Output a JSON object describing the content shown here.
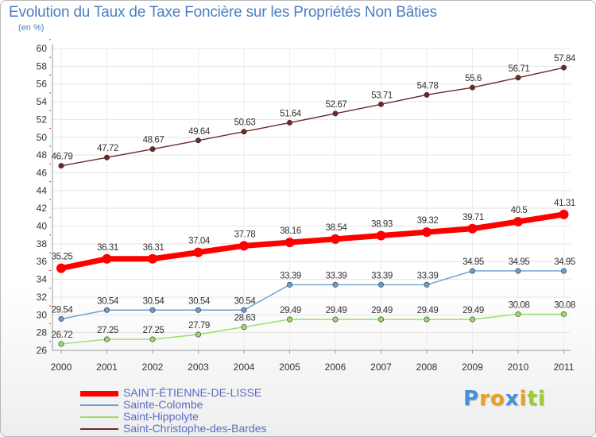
{
  "chart_data": {
    "type": "line",
    "title": "Evolution du Taux de Taxe Foncière sur les Propriétés Non Bâties",
    "subtitle": "(en %)",
    "xlabel": "",
    "ylabel": "",
    "ylim": [
      26,
      60
    ],
    "yticks": [
      26,
      28,
      30,
      32,
      34,
      36,
      38,
      40,
      42,
      44,
      46,
      48,
      50,
      52,
      54,
      56,
      58,
      60
    ],
    "x": [
      "2000",
      "2001",
      "2002",
      "2003",
      "2004",
      "2005",
      "2006",
      "2007",
      "2008",
      "2009",
      "2010",
      "2011"
    ],
    "series": [
      {
        "name": "Saint-Christophe-des-Bardes",
        "color": "#6b2a2a",
        "values": [
          46.79,
          47.72,
          48.67,
          49.64,
          50.63,
          51.64,
          52.67,
          53.71,
          54.78,
          55.6,
          56.71,
          57.84
        ],
        "labels": [
          "46.79",
          "47.72",
          "48.67",
          "49.64",
          "50.63",
          "51.64",
          "52.67",
          "53.71",
          "54.78",
          "55.6",
          "56.71",
          "57.84"
        ]
      },
      {
        "name": "SAINT-ÉTIENNE-DE-LISSE",
        "color": "#ff0000",
        "highlight": true,
        "values": [
          35.25,
          36.31,
          36.31,
          37.04,
          37.78,
          38.16,
          38.54,
          38.93,
          39.32,
          39.71,
          40.5,
          41.31
        ],
        "labels": [
          "35.25",
          "36.31",
          "36.31",
          "37.04",
          "37.78",
          "38.16",
          "38.54",
          "38.93",
          "39.32",
          "39.71",
          "40.5",
          "41.31"
        ]
      },
      {
        "name": "Sainte-Colombe",
        "color": "#6a9ed0",
        "values": [
          29.54,
          30.54,
          30.54,
          30.54,
          30.54,
          33.39,
          33.39,
          33.39,
          33.39,
          34.95,
          34.95,
          34.95
        ],
        "labels": [
          "29.54",
          "30.54",
          "30.54",
          "30.54",
          "30.54",
          "33.39",
          "33.39",
          "33.39",
          "33.39",
          "34.95",
          "34.95",
          "34.95"
        ]
      },
      {
        "name": "Saint-Hippolyte",
        "color": "#99dd66",
        "values": [
          26.72,
          27.25,
          27.25,
          27.79,
          28.63,
          29.49,
          29.49,
          29.49,
          29.49,
          29.49,
          30.08,
          30.08
        ],
        "labels": [
          "26.72",
          "27.25",
          "27.25",
          "27.79",
          "28.63",
          "29.49",
          "29.49",
          "29.49",
          "29.49",
          "29.49",
          "30.08",
          "30.08"
        ]
      }
    ],
    "legend": [
      {
        "name": "SAINT-ÉTIENNE-DE-LISSE",
        "color": "#ff0000",
        "highlight": true
      },
      {
        "name": "Sainte-Colombe",
        "color": "#6a9ed0"
      },
      {
        "name": "Saint-Hippolyte",
        "color": "#99dd66"
      },
      {
        "name": "Saint-Christophe-des-Bardes",
        "color": "#6b2a2a"
      }
    ],
    "legend_position": "bottom-left"
  },
  "logo": {
    "letters": [
      "P",
      "r",
      "o",
      "x",
      "i",
      "t",
      "i"
    ],
    "colors": [
      "#4a8fd6",
      "#e8a020",
      "#e8a020",
      "#4a8fd6",
      "#e8a020",
      "#9acd32",
      "#9acd32"
    ]
  }
}
